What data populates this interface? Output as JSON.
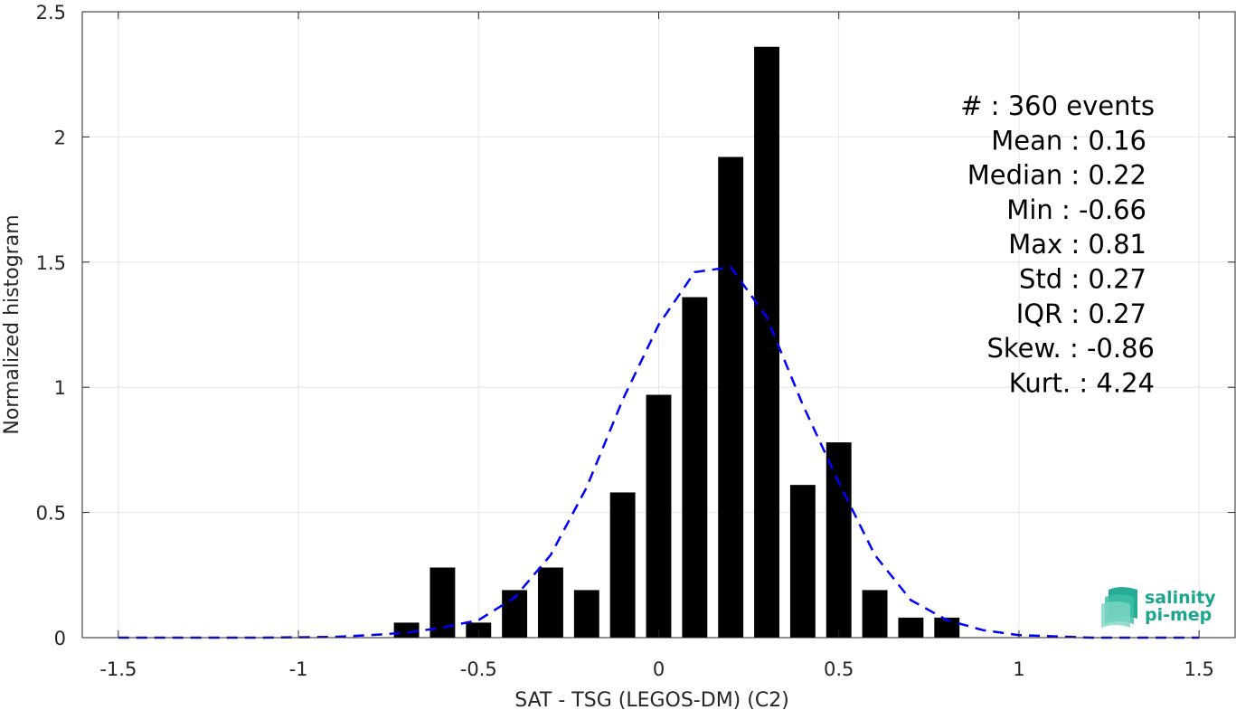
{
  "chart_data": {
    "type": "bar",
    "xlabel": "SAT - TSG (LEGOS-DM) (C2)",
    "ylabel": "Normalized histogram",
    "xlim": [
      -1.6,
      1.6
    ],
    "ylim": [
      0,
      2.5
    ],
    "xticks": [
      -1.5,
      -1,
      -0.5,
      0,
      0.5,
      1,
      1.5
    ],
    "xtick_labels": [
      "-1.5",
      "-1",
      "-0.5",
      "0",
      "0.5",
      "1",
      "1.5"
    ],
    "yticks": [
      0,
      0.5,
      1,
      1.5,
      2,
      2.5
    ],
    "ytick_labels": [
      "0",
      "0.5",
      "1",
      "1.5",
      "2",
      "2.5"
    ],
    "grid": true,
    "bar_color": "#000000",
    "bin_width": 0.1,
    "bars": {
      "x": [
        -0.7,
        -0.6,
        -0.5,
        -0.4,
        -0.3,
        -0.2,
        -0.1,
        0.0,
        0.1,
        0.2,
        0.3,
        0.4,
        0.5,
        0.6,
        0.7,
        0.8
      ],
      "values": [
        0.06,
        0.28,
        0.06,
        0.19,
        0.28,
        0.19,
        0.58,
        0.97,
        1.36,
        1.92,
        2.36,
        0.61,
        0.78,
        0.19,
        0.08,
        0.08
      ]
    },
    "fit_curve": {
      "style": "dashed",
      "color": "#0000ff",
      "x": [
        -1.5,
        -1.3,
        -1.1,
        -0.9,
        -0.8,
        -0.7,
        -0.6,
        -0.5,
        -0.4,
        -0.3,
        -0.2,
        -0.1,
        0.0,
        0.1,
        0.2,
        0.3,
        0.4,
        0.5,
        0.6,
        0.7,
        0.8,
        0.9,
        1.0,
        1.2,
        1.5
      ],
      "y": [
        0.0,
        0.0,
        0.0,
        0.003,
        0.01,
        0.02,
        0.04,
        0.07,
        0.16,
        0.33,
        0.6,
        0.95,
        1.25,
        1.46,
        1.48,
        1.28,
        0.93,
        0.62,
        0.33,
        0.15,
        0.07,
        0.03,
        0.01,
        0.0,
        0.0
      ]
    },
    "annotations": [
      "#  : 360 events",
      "Mean : 0.16",
      "Median : 0.22",
      "Min : -0.66",
      "Max : 0.81",
      "Std : 0.27",
      "IQR : 0.27",
      "Skew. : -0.86",
      "Kurt. : 4.24"
    ]
  },
  "logo": {
    "line1": "salinity",
    "line2": "pi-mep",
    "color": "#1aa68f"
  }
}
